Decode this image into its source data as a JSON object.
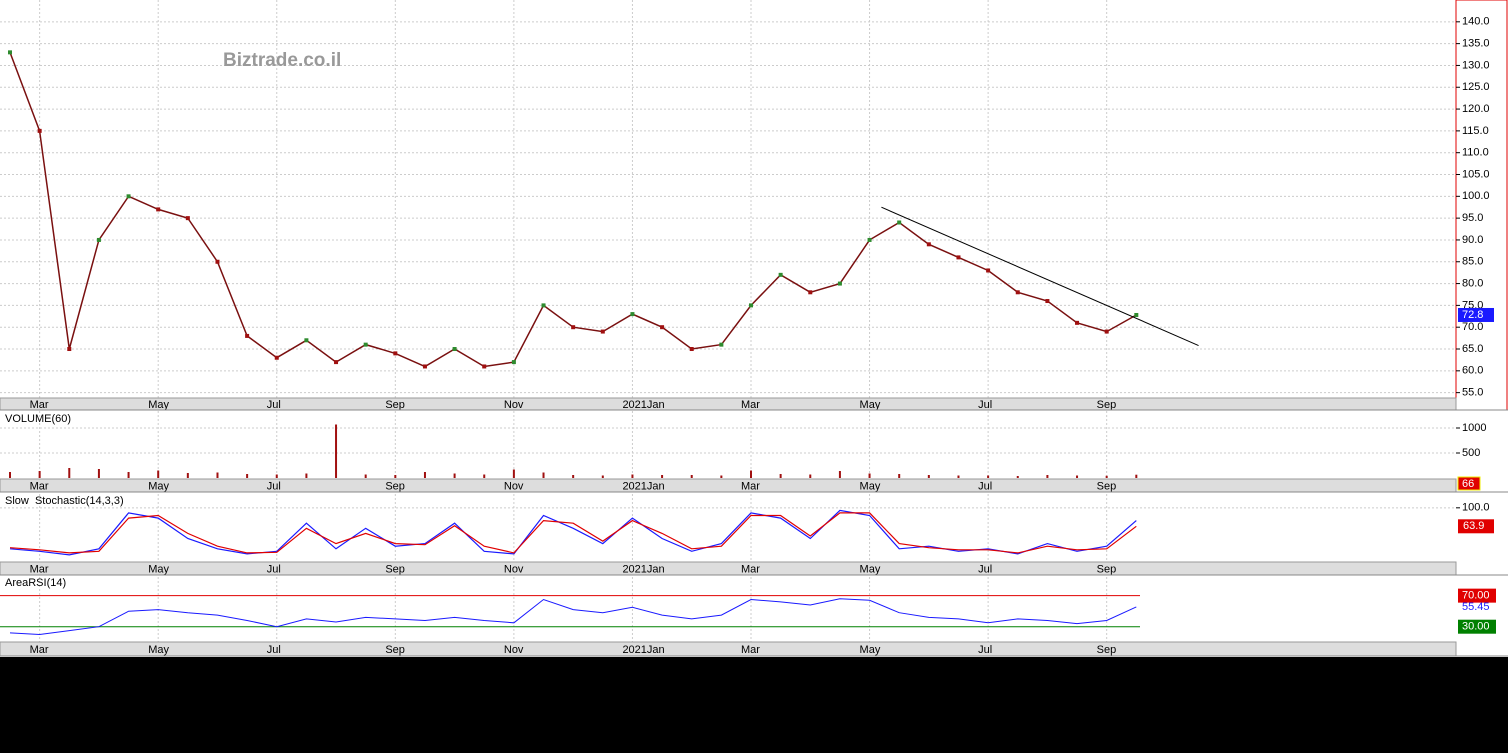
{
  "chart_data": [
    {
      "type": "line",
      "watermark": "Biztrade.co.il",
      "color": "#7a1010",
      "categories": [
        null,
        "Mar",
        null,
        null,
        null,
        "May",
        null,
        null,
        null,
        "Jul",
        null,
        null,
        null,
        "Sep",
        null,
        null,
        null,
        "Nov",
        null,
        null,
        null,
        "2021Jan",
        null,
        null,
        null,
        "Mar",
        null,
        null,
        null,
        "May",
        null,
        null,
        null,
        "Jul",
        null,
        null,
        null,
        "Sep",
        null
      ],
      "values": [
        133,
        115,
        65,
        90,
        100,
        97,
        95,
        85,
        68,
        63,
        67,
        62,
        66,
        64,
        61,
        65,
        61,
        62,
        75,
        70,
        69,
        73,
        70,
        65,
        66,
        75,
        82,
        78,
        80,
        90,
        94,
        89,
        86,
        83,
        78,
        76,
        71,
        69,
        72.8
      ],
      "last_value": 72.8,
      "trendline": {
        "x": [
          29.4,
          40.1
        ],
        "values": [
          97.5,
          65.8
        ]
      },
      "ylim": [
        54,
        145
      ],
      "yticks": [
        {
          "value": 55,
          "label": "55.0"
        },
        {
          "value": 60,
          "label": "60.0"
        },
        {
          "value": 65,
          "label": "65.0"
        },
        {
          "value": 70,
          "label": "70.0"
        },
        {
          "value": 75,
          "label": "75.0"
        },
        {
          "value": 80,
          "label": "80.0"
        },
        {
          "value": 85,
          "label": "85.0"
        },
        {
          "value": 90,
          "label": "90.0"
        },
        {
          "value": 95,
          "label": "95.0"
        },
        {
          "value": 100,
          "label": "100.0"
        },
        {
          "value": 105,
          "label": "105.0"
        },
        {
          "value": 110,
          "label": "110.0"
        },
        {
          "value": 115,
          "label": "115.0"
        },
        {
          "value": 120,
          "label": "120.0"
        },
        {
          "value": 125,
          "label": "125.0"
        },
        {
          "value": 130,
          "label": "130.0"
        },
        {
          "value": 135,
          "label": "135.0"
        },
        {
          "value": 140,
          "label": "140.0"
        }
      ],
      "grid": true
    },
    {
      "type": "bar",
      "title": "VOLUME(60)",
      "color": "#a01010",
      "values": [
        120,
        140,
        200,
        180,
        120,
        150,
        100,
        110,
        80,
        70,
        90,
        1070,
        70,
        60,
        120,
        90,
        70,
        170,
        110,
        60,
        50,
        70,
        60,
        60,
        50,
        150,
        80,
        70,
        140,
        90,
        80,
        60,
        50,
        50,
        40,
        60,
        50,
        45,
        66
      ],
      "last_value": 66,
      "ylim": [
        0,
        1340
      ],
      "yticks": [
        500,
        1000
      ],
      "grid": true
    },
    {
      "type": "line",
      "title": "Slow  Stochastic(14,3,3)",
      "series": [
        {
          "color": "#1a1aff",
          "values": [
            20,
            15,
            8,
            20,
            90,
            80,
            40,
            20,
            10,
            15,
            70,
            20,
            60,
            25,
            30,
            70,
            15,
            10,
            85,
            60,
            30,
            80,
            40,
            15,
            30,
            90,
            80,
            40,
            95,
            85,
            20,
            25,
            15,
            20,
            10,
            30,
            15,
            25,
            75
          ]
        },
        {
          "color": "#e00000",
          "values": [
            22,
            18,
            12,
            15,
            80,
            85,
            50,
            25,
            12,
            13,
            60,
            30,
            50,
            30,
            28,
            65,
            25,
            12,
            75,
            70,
            35,
            75,
            50,
            20,
            25,
            85,
            85,
            45,
            90,
            90,
            30,
            22,
            18,
            18,
            12,
            25,
            18,
            20,
            63.9
          ]
        }
      ],
      "last_value": 63.9,
      "ylim": [
        0,
        127
      ],
      "yticks": [
        {
          "value": 100,
          "label": "100.0"
        }
      ],
      "grid": true
    },
    {
      "type": "area",
      "title": "AreaRSI(14)",
      "color": "#1a1aff",
      "values": [
        22,
        20,
        25,
        30,
        50,
        52,
        48,
        45,
        38,
        30,
        40,
        36,
        42,
        40,
        38,
        42,
        38,
        35,
        65,
        52,
        48,
        55,
        45,
        40,
        45,
        65,
        62,
        58,
        66,
        64,
        48,
        42,
        40,
        35,
        40,
        38,
        34,
        38,
        55.45
      ],
      "last_value": 55.45,
      "reference_lines": [
        {
          "value": 70,
          "label": "70.00",
          "color": "#e00000"
        },
        {
          "value": 30,
          "label": "30.00",
          "color": "#008000"
        }
      ],
      "ylim": [
        0,
        94
      ],
      "grid": true
    }
  ]
}
